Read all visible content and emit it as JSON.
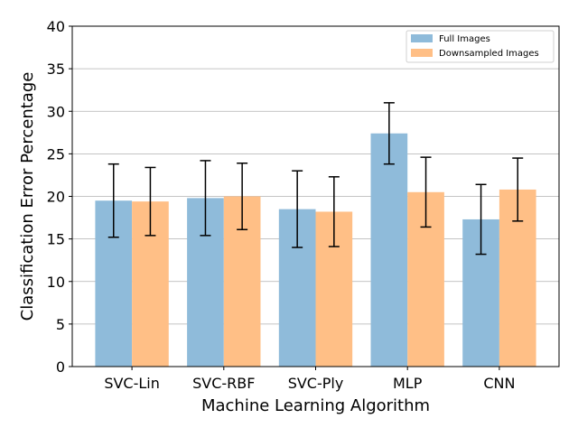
{
  "chart_data": {
    "type": "bar",
    "title": "",
    "xlabel": "Machine Learning Algorithm",
    "ylabel": "Classification Error Percentage",
    "ylim": [
      0,
      40
    ],
    "yticks": [
      0,
      5,
      10,
      15,
      20,
      25,
      30,
      35,
      40
    ],
    "grid": "horizontal",
    "legend_position": "top-right",
    "categories": [
      "SVC-Lin",
      "SVC-RBF",
      "SVC-Ply",
      "MLP",
      "CNN"
    ],
    "series": [
      {
        "name": "Full Images",
        "color": "#8fbbda",
        "values": [
          19.5,
          19.8,
          18.5,
          27.4,
          17.3
        ],
        "error": [
          4.3,
          4.4,
          4.5,
          3.6,
          4.1
        ]
      },
      {
        "name": "Downsampled Images",
        "color": "#ffbf86",
        "values": [
          19.4,
          20.0,
          18.2,
          20.5,
          20.8
        ],
        "error": [
          4.0,
          3.9,
          4.1,
          4.1,
          3.7
        ]
      }
    ]
  }
}
